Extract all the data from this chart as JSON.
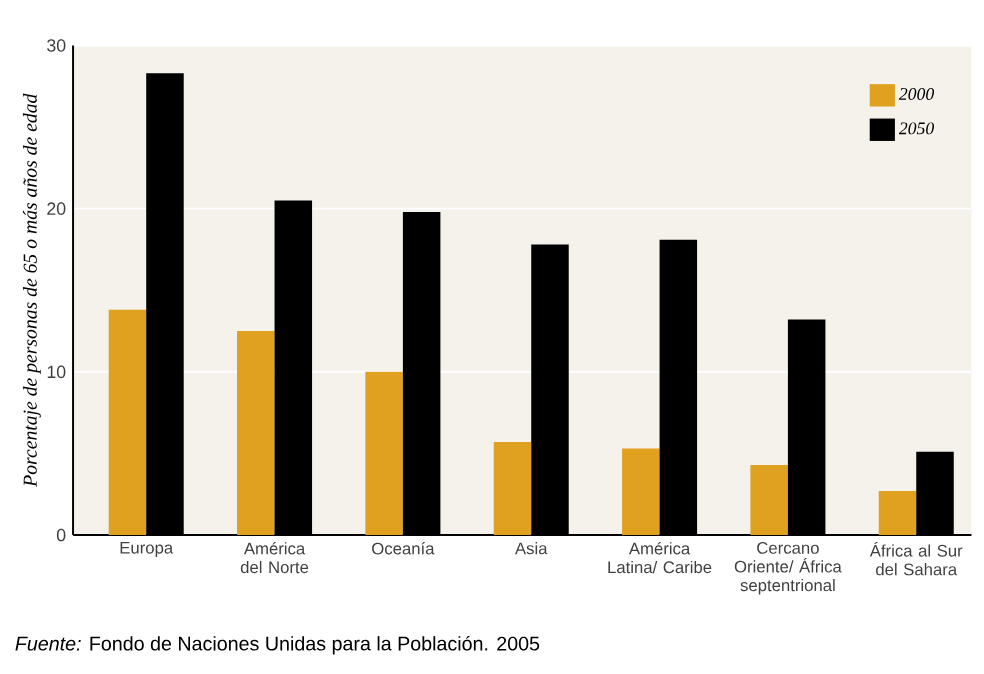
{
  "chart_data": {
    "type": "bar",
    "ylabel": "Porcentaje de personas de 65 o más años de edad",
    "categories": [
      "Europa",
      "América del Norte",
      "Oceanía",
      "Asia",
      "América Latina/ Caribe",
      "Cercano Oriente/ África septentrional",
      "África al Sur del Sahara"
    ],
    "series": [
      {
        "name": "2000",
        "color": "#e0a020",
        "values": [
          13.8,
          12.5,
          10.0,
          5.7,
          5.3,
          4.3,
          2.7
        ]
      },
      {
        "name": "2050",
        "color": "#000000",
        "values": [
          28.3,
          20.5,
          19.8,
          17.8,
          18.1,
          13.2,
          5.1
        ]
      }
    ],
    "ylim": [
      0,
      30
    ],
    "yticks": [
      0,
      10,
      20,
      30
    ],
    "grid": "y",
    "legend": "top right",
    "annotations": [
      "*Fuente:* Fondo de Naciones Unidas para la Población. 2005"
    ]
  }
}
